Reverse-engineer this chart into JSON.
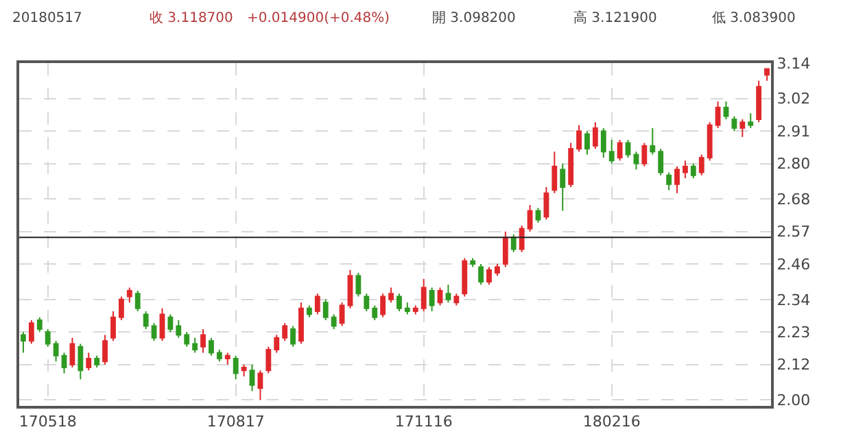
{
  "chart_data": {
    "type": "candlestick",
    "annotations": [
      "20180517",
      "收 3.118700",
      "+0.014900(+0.48%)",
      "開 3.098200",
      "高 3.121900",
      "低 3.083900"
    ],
    "categories": [
      null,
      null,
      null,
      "170518",
      null,
      null,
      null,
      null,
      null,
      null,
      null,
      null,
      null,
      null,
      null,
      null,
      null,
      null,
      null,
      null,
      null,
      null,
      null,
      null,
      null,
      null,
      "170817",
      null,
      null,
      null,
      null,
      null,
      null,
      null,
      null,
      null,
      null,
      null,
      null,
      null,
      null,
      null,
      null,
      null,
      null,
      null,
      null,
      null,
      null,
      "171116",
      null,
      null,
      null,
      null,
      null,
      null,
      null,
      null,
      null,
      null,
      null,
      null,
      null,
      null,
      null,
      null,
      null,
      null,
      null,
      null,
      null,
      null,
      "180216",
      null,
      null,
      null,
      null,
      null,
      null,
      null,
      null,
      null,
      null,
      null,
      null,
      null,
      null,
      null,
      null,
      null,
      null,
      null
    ],
    "ohlc": [
      [
        2.22,
        2.23,
        2.16,
        2.2
      ],
      [
        2.2,
        2.27,
        2.19,
        2.26
      ],
      [
        2.27,
        2.28,
        2.23,
        2.24
      ],
      [
        2.23,
        2.24,
        2.18,
        2.19
      ],
      [
        2.19,
        2.2,
        2.13,
        2.15
      ],
      [
        2.15,
        2.16,
        2.09,
        2.11
      ],
      [
        2.12,
        2.21,
        2.11,
        2.19
      ],
      [
        2.18,
        2.19,
        2.07,
        2.1
      ],
      [
        2.11,
        2.16,
        2.1,
        2.14
      ],
      [
        2.14,
        2.15,
        2.11,
        2.12
      ],
      [
        2.13,
        2.22,
        2.12,
        2.2
      ],
      [
        2.21,
        2.3,
        2.2,
        2.28
      ],
      [
        2.28,
        2.35,
        2.27,
        2.34
      ],
      [
        2.35,
        2.38,
        2.33,
        2.37
      ],
      [
        2.36,
        2.37,
        2.3,
        2.31
      ],
      [
        2.29,
        2.3,
        2.24,
        2.25
      ],
      [
        2.25,
        2.26,
        2.2,
        2.21
      ],
      [
        2.21,
        2.31,
        2.2,
        2.29
      ],
      [
        2.28,
        2.29,
        2.23,
        2.24
      ],
      [
        2.25,
        2.27,
        2.21,
        2.22
      ],
      [
        2.22,
        2.23,
        2.18,
        2.19
      ],
      [
        2.19,
        2.21,
        2.16,
        2.17
      ],
      [
        2.18,
        2.24,
        2.16,
        2.22
      ],
      [
        2.2,
        2.21,
        2.15,
        2.16
      ],
      [
        2.16,
        2.17,
        2.13,
        2.14
      ],
      [
        2.14,
        2.16,
        2.12,
        2.15
      ],
      [
        2.14,
        2.15,
        2.07,
        2.09
      ],
      [
        2.1,
        2.12,
        2.08,
        2.11
      ],
      [
        2.1,
        2.12,
        2.03,
        2.05
      ],
      [
        2.04,
        2.1,
        2.0,
        2.09
      ],
      [
        2.1,
        2.18,
        2.09,
        2.17
      ],
      [
        2.17,
        2.22,
        2.16,
        2.21
      ],
      [
        2.21,
        2.26,
        2.2,
        2.25
      ],
      [
        2.24,
        2.25,
        2.18,
        2.19
      ],
      [
        2.2,
        2.33,
        2.19,
        2.31
      ],
      [
        2.31,
        2.32,
        2.28,
        2.29
      ],
      [
        2.3,
        2.36,
        2.29,
        2.35
      ],
      [
        2.33,
        2.34,
        2.27,
        2.28
      ],
      [
        2.28,
        2.29,
        2.24,
        2.25
      ],
      [
        2.26,
        2.33,
        2.25,
        2.32
      ],
      [
        2.32,
        2.44,
        2.31,
        2.42
      ],
      [
        2.42,
        2.43,
        2.35,
        2.36
      ],
      [
        2.35,
        2.36,
        2.3,
        2.31
      ],
      [
        2.31,
        2.32,
        2.27,
        2.28
      ],
      [
        2.29,
        2.36,
        2.28,
        2.35
      ],
      [
        2.34,
        2.38,
        2.33,
        2.36
      ],
      [
        2.35,
        2.36,
        2.3,
        2.31
      ],
      [
        2.31,
        2.33,
        2.29,
        2.3
      ],
      [
        2.3,
        2.32,
        2.29,
        2.31
      ],
      [
        2.31,
        2.41,
        2.3,
        2.38
      ],
      [
        2.37,
        2.38,
        2.3,
        2.32
      ],
      [
        2.33,
        2.38,
        2.32,
        2.37
      ],
      [
        2.36,
        2.39,
        2.33,
        2.34
      ],
      [
        2.33,
        2.36,
        2.32,
        2.35
      ],
      [
        2.36,
        2.48,
        2.35,
        2.47
      ],
      [
        2.47,
        2.48,
        2.45,
        2.46
      ],
      [
        2.45,
        2.46,
        2.39,
        2.4
      ],
      [
        2.4,
        2.45,
        2.39,
        2.44
      ],
      [
        2.43,
        2.46,
        2.42,
        2.45
      ],
      [
        2.46,
        2.57,
        2.45,
        2.55
      ],
      [
        2.55,
        2.56,
        2.5,
        2.51
      ],
      [
        2.51,
        2.59,
        2.5,
        2.58
      ],
      [
        2.58,
        2.66,
        2.57,
        2.64
      ],
      [
        2.64,
        2.65,
        2.6,
        2.61
      ],
      [
        2.62,
        2.72,
        2.61,
        2.7
      ],
      [
        2.71,
        2.84,
        2.7,
        2.79
      ],
      [
        2.78,
        2.8,
        2.64,
        2.72
      ],
      [
        2.73,
        2.87,
        2.72,
        2.85
      ],
      [
        2.85,
        2.93,
        2.84,
        2.91
      ],
      [
        2.9,
        2.91,
        2.83,
        2.85
      ],
      [
        2.86,
        2.94,
        2.85,
        2.92
      ],
      [
        2.91,
        2.92,
        2.82,
        2.84
      ],
      [
        2.84,
        2.88,
        2.8,
        2.81
      ],
      [
        2.82,
        2.88,
        2.81,
        2.87
      ],
      [
        2.87,
        2.88,
        2.82,
        2.83
      ],
      [
        2.83,
        2.84,
        2.78,
        2.8
      ],
      [
        2.8,
        2.87,
        2.79,
        2.86
      ],
      [
        2.86,
        2.92,
        2.83,
        2.84
      ],
      [
        2.84,
        2.85,
        2.76,
        2.77
      ],
      [
        2.76,
        2.77,
        2.71,
        2.73
      ],
      [
        2.73,
        2.79,
        2.7,
        2.78
      ],
      [
        2.77,
        2.81,
        2.75,
        2.79
      ],
      [
        2.79,
        2.8,
        2.75,
        2.76
      ],
      [
        2.77,
        2.83,
        2.76,
        2.82
      ],
      [
        2.82,
        2.94,
        2.81,
        2.93
      ],
      [
        2.93,
        3.01,
        2.92,
        2.99
      ],
      [
        2.99,
        3.01,
        2.95,
        2.96
      ],
      [
        2.95,
        2.96,
        2.91,
        2.92
      ],
      [
        2.92,
        2.95,
        2.89,
        2.94
      ],
      [
        2.94,
        2.97,
        2.92,
        2.93
      ],
      [
        2.95,
        3.08,
        2.94,
        3.06
      ],
      [
        3.1,
        3.12,
        3.08,
        3.12
      ]
    ],
    "colors": [
      "#2e9a22",
      "#e0282b",
      "#2e9a22",
      "#2e9a22",
      "#2e9a22",
      "#2e9a22",
      "#e0282b",
      "#2e9a22",
      "#e0282b",
      "#2e9a22",
      "#e0282b",
      "#e0282b",
      "#e0282b",
      "#e0282b",
      "#2e9a22",
      "#2e9a22",
      "#2e9a22",
      "#e0282b",
      "#2e9a22",
      "#2e9a22",
      "#2e9a22",
      "#2e9a22",
      "#e0282b",
      "#2e9a22",
      "#2e9a22",
      "#e0282b",
      "#2e9a22",
      "#e0282b",
      "#2e9a22",
      "#e0282b",
      "#e0282b",
      "#e0282b",
      "#e0282b",
      "#2e9a22",
      "#e0282b",
      "#2e9a22",
      "#e0282b",
      "#2e9a22",
      "#2e9a22",
      "#e0282b",
      "#e0282b",
      "#2e9a22",
      "#2e9a22",
      "#2e9a22",
      "#e0282b",
      "#e0282b",
      "#2e9a22",
      "#2e9a22",
      "#e0282b",
      "#e0282b",
      "#2e9a22",
      "#e0282b",
      "#2e9a22",
      "#e0282b",
      "#e0282b",
      "#2e9a22",
      "#2e9a22",
      "#e0282b",
      "#e0282b",
      "#e0282b",
      "#2e9a22",
      "#e0282b",
      "#e0282b",
      "#2e9a22",
      "#e0282b",
      "#e0282b",
      "#2e9a22",
      "#e0282b",
      "#e0282b",
      "#2e9a22",
      "#e0282b",
      "#2e9a22",
      "#2e9a22",
      "#e0282b",
      "#2e9a22",
      "#2e9a22",
      "#e0282b",
      "#2e9a22",
      "#2e9a22",
      "#2e9a22",
      "#e0282b",
      "#e0282b",
      "#2e9a22",
      "#e0282b",
      "#e0282b",
      "#e0282b",
      "#2e9a22",
      "#2e9a22",
      "#e0282b",
      "#2e9a22",
      "#e0282b",
      "#e0282b"
    ],
    "ylim": [
      1.98,
      3.14
    ],
    "yticks": [
      {
        "value": 2.0,
        "label": "2.00"
      },
      2.12,
      2.23,
      2.34,
      2.46,
      2.57,
      2.68,
      {
        "value": 2.8,
        "label": "2.80"
      },
      2.91,
      3.02,
      3.14
    ],
    "ref_lines": [
      {
        "axis": "y",
        "value": 2.55,
        "color": "#222222"
      }
    ],
    "grid": true
  }
}
